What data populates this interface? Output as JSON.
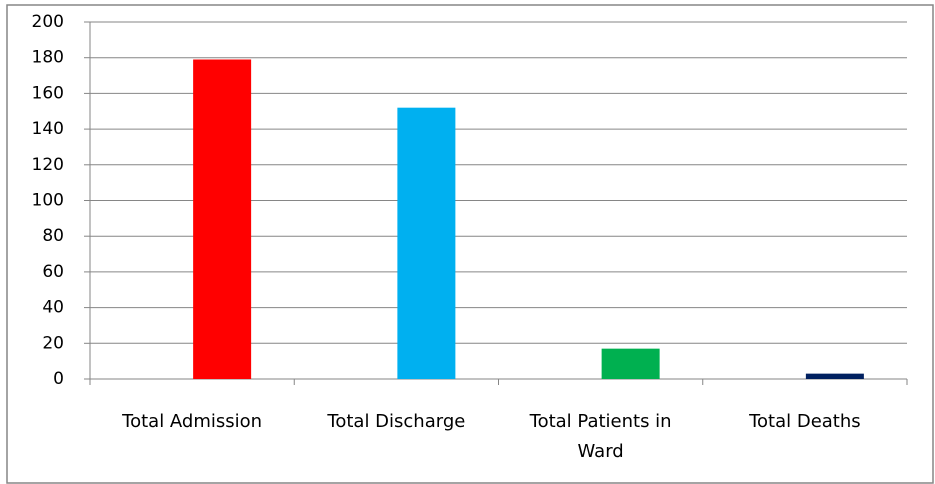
{
  "chart_data": {
    "type": "bar",
    "categories": [
      "Total Admission",
      "Total Discharge",
      "Total Patients in Ward",
      "Total Deaths"
    ],
    "values": [
      179,
      152,
      17,
      3
    ],
    "colors": [
      "#ff0000",
      "#00b0f0",
      "#00b050",
      "#002060"
    ],
    "ylim": [
      0,
      200
    ],
    "yticks": [
      0,
      20,
      40,
      60,
      80,
      100,
      120,
      140,
      160,
      180,
      200
    ],
    "grid": true
  }
}
